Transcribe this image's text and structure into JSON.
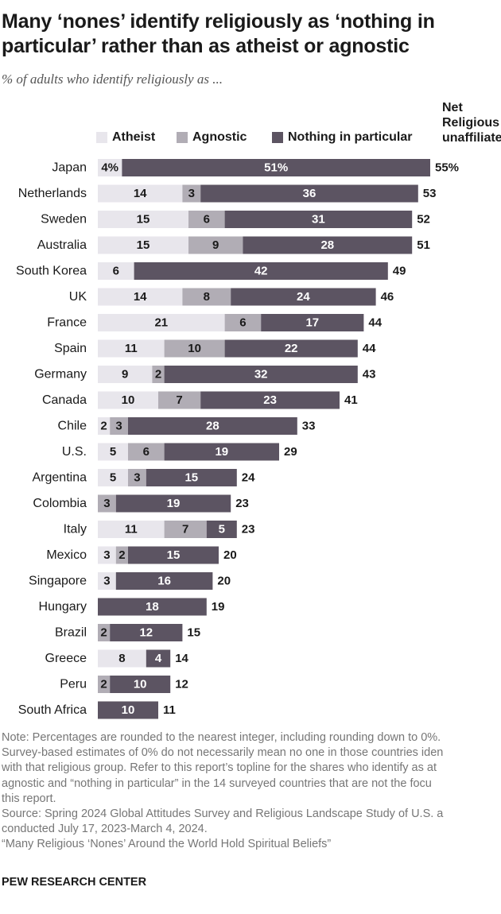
{
  "header": {
    "title": "Many ‘nones’ identify religiously as ‘nothing in particular’ rather than as atheist or agnostic",
    "subtitle": "% of adults who identify religiously as ...",
    "net_column_label": "Net Religious unaffiliated"
  },
  "legend": {
    "atheist": "Atheist",
    "agnostic": "Agnostic",
    "nothing": "Nothing in particular"
  },
  "colors": {
    "atheist": "#e8e6ec",
    "agnostic": "#b1adb5",
    "nothing": "#5c5462",
    "text_dark": "#1a1a1a",
    "text_light": "#ffffff"
  },
  "chart_data": {
    "type": "bar",
    "stacked": true,
    "orientation": "horizontal",
    "title": "Many ‘nones’ identify religiously as ‘nothing in particular’ rather than as atheist or agnostic",
    "subtitle": "% of adults who identify religiously as ...",
    "categories": [
      "Japan",
      "Netherlands",
      "Sweden",
      "Australia",
      "South Korea",
      "UK",
      "France",
      "Spain",
      "Germany",
      "Canada",
      "Chile",
      "U.S.",
      "Argentina",
      "Colombia",
      "Italy",
      "Mexico",
      "Singapore",
      "Hungary",
      "Brazil",
      "Greece",
      "Peru",
      "South Africa"
    ],
    "series": [
      {
        "name": "Atheist",
        "values": [
          4,
          14,
          15,
          15,
          6,
          14,
          21,
          11,
          9,
          10,
          2,
          5,
          5,
          0,
          11,
          3,
          3,
          0,
          0,
          8,
          0,
          0
        ]
      },
      {
        "name": "Agnostic",
        "values": [
          0,
          3,
          6,
          9,
          0,
          8,
          6,
          10,
          2,
          7,
          3,
          6,
          3,
          3,
          7,
          2,
          0,
          0,
          2,
          0,
          2,
          0
        ]
      },
      {
        "name": "Nothing in particular",
        "values": [
          51,
          36,
          31,
          28,
          42,
          24,
          17,
          22,
          32,
          23,
          28,
          19,
          15,
          19,
          5,
          15,
          16,
          18,
          12,
          4,
          10,
          10
        ]
      }
    ],
    "segment_labels": [
      [
        "4%",
        "",
        "51%"
      ],
      [
        "14",
        "3",
        "36"
      ],
      [
        "15",
        "6",
        "31"
      ],
      [
        "15",
        "9",
        "28"
      ],
      [
        "6",
        "",
        "42"
      ],
      [
        "14",
        "8",
        "24"
      ],
      [
        "21",
        "6",
        "17"
      ],
      [
        "11",
        "10",
        "22"
      ],
      [
        "9",
        "2",
        "32"
      ],
      [
        "10",
        "7",
        "23"
      ],
      [
        "2",
        "3",
        "28"
      ],
      [
        "5",
        "6",
        "19"
      ],
      [
        "5",
        "3",
        "15"
      ],
      [
        "",
        "3",
        "19"
      ],
      [
        "11",
        "7",
        "5"
      ],
      [
        "3",
        "2",
        "15"
      ],
      [
        "3",
        "",
        "16"
      ],
      [
        "",
        "",
        "18"
      ],
      [
        "",
        "2",
        "12"
      ],
      [
        "8",
        "",
        "4"
      ],
      [
        "",
        "2",
        "10"
      ],
      [
        "",
        "",
        "10"
      ]
    ],
    "net_labels": [
      "55%",
      "53",
      "52",
      "51",
      "49",
      "46",
      "44",
      "44",
      "43",
      "41",
      "33",
      "29",
      "24",
      "23",
      "23",
      "20",
      "20",
      "19",
      "15",
      "14",
      "12",
      "11"
    ],
    "xlim": [
      0,
      55
    ]
  },
  "footer": {
    "note_lines": [
      "Note: Percentages are rounded to the nearest integer, including rounding down to 0%.",
      "Survey-based estimates of 0% do not necessarily mean no one in those countries iden",
      "with that religious group. Refer to this report’s topline for the shares who identify as at",
      "agnostic and “nothing in particular” in the 14 surveyed countries that are not the focu",
      "this report.",
      "Source: Spring 2024 Global Attitudes Survey and Religious Landscape Study of U.S. a",
      "conducted July 17, 2023-March 4, 2024.",
      "“Many Religious ‘Nones’ Around the World Hold Spiritual Beliefs”"
    ],
    "org": "PEW RESEARCH CENTER"
  }
}
